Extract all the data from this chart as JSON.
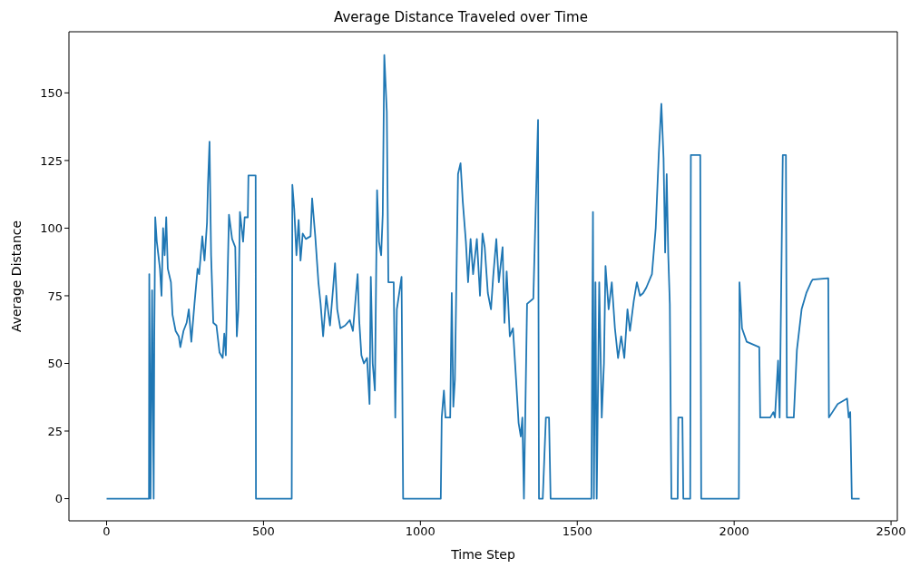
{
  "chart_data": {
    "type": "line",
    "title": "Average Distance Traveled over Time",
    "xlabel": "Time Step",
    "ylabel": "Average Distance",
    "xlim": [
      -120,
      2520
    ],
    "ylim": [
      -8.2,
      172.6
    ],
    "xticks": [
      0,
      500,
      1000,
      1500,
      2000,
      2500
    ],
    "yticks": [
      0,
      25,
      50,
      75,
      100,
      125,
      150
    ],
    "series": [
      {
        "color": "#1f77b4",
        "x": [
          0,
          135,
          136,
          140,
          145,
          150,
          152,
          155,
          160,
          170,
          175,
          180,
          185,
          190,
          195,
          205,
          210,
          220,
          230,
          235,
          245,
          255,
          262,
          270,
          280,
          290,
          295,
          300,
          305,
          312,
          320,
          323,
          328,
          333,
          340,
          350,
          360,
          370,
          375,
          380,
          390,
          400,
          410,
          415,
          420,
          425,
          435,
          440,
          450,
          452,
          475,
          476,
          590,
          592,
          598,
          605,
          612,
          618,
          625,
          635,
          650,
          655,
          665,
          675,
          682,
          690,
          700,
          712,
          722,
          728,
          735,
          745,
          760,
          775,
          785,
          795,
          800,
          805,
          812,
          820,
          830,
          838,
          842,
          848,
          855,
          862,
          868,
          875,
          880,
          885,
          893,
          898,
          915,
          920,
          925,
          940,
          945,
          1065,
          1068,
          1075,
          1080,
          1095,
          1100,
          1105,
          1110,
          1120,
          1128,
          1135,
          1145,
          1152,
          1160,
          1168,
          1180,
          1190,
          1198,
          1205,
          1215,
          1225,
          1232,
          1242,
          1250,
          1262,
          1268,
          1275,
          1285,
          1295,
          1305,
          1313,
          1320,
          1325,
          1330,
          1340,
          1360,
          1375,
          1378,
          1390,
          1400,
          1410,
          1415,
          1545,
          1550,
          1553,
          1558,
          1562,
          1570,
          1578,
          1585,
          1590,
          1600,
          1610,
          1620,
          1630,
          1640,
          1650,
          1660,
          1668,
          1680,
          1690,
          1700,
          1710,
          1720,
          1738,
          1750,
          1760,
          1768,
          1775,
          1780,
          1785,
          1790,
          1795,
          1800,
          1820,
          1822,
          1835,
          1838,
          1860,
          1862,
          1892,
          1895,
          2015,
          2017,
          2025,
          2040,
          2080,
          2083,
          2115,
          2125,
          2130,
          2140,
          2145,
          2155,
          2165,
          2168,
          2190,
          2200,
          2215,
          2230,
          2245,
          2250,
          2300,
          2302,
          2330,
          2360,
          2365,
          2370,
          2375,
          2400
        ],
        "values": [
          0,
          0,
          83,
          0,
          77,
          0,
          60,
          104,
          95,
          85,
          75,
          100,
          90,
          104,
          85,
          80,
          68,
          62,
          60,
          56,
          62,
          65,
          70,
          58,
          72,
          85,
          83,
          90,
          97,
          88,
          102,
          116,
          132,
          90,
          65,
          64,
          54,
          52,
          61,
          53,
          105,
          96,
          93,
          60,
          70,
          106,
          95,
          104,
          104,
          119.5,
          119.5,
          0,
          0,
          116,
          107,
          90,
          103,
          88,
          98,
          96,
          97,
          111,
          97,
          80,
          72,
          60,
          75,
          64,
          78,
          87,
          70,
          63,
          64,
          66,
          62,
          76,
          83,
          66,
          53,
          50,
          52,
          35,
          82,
          50,
          40,
          114,
          95,
          90,
          105,
          164,
          143,
          80,
          80,
          30,
          70,
          82,
          0,
          0,
          30,
          40,
          30,
          30,
          76,
          34,
          44,
          120,
          124,
          110,
          95,
          80,
          96,
          83,
          96,
          75,
          98,
          93,
          76,
          70,
          82,
          96,
          80,
          93,
          65,
          84,
          60,
          63,
          44,
          28,
          23,
          30,
          0,
          72,
          74,
          140,
          0,
          0,
          30,
          30,
          0,
          0,
          106,
          0,
          80,
          0,
          80,
          30,
          50,
          86,
          70,
          80,
          63,
          52,
          60,
          52,
          70,
          62,
          73,
          80,
          75,
          76,
          78,
          83,
          100,
          128,
          146,
          126,
          91,
          120,
          90,
          72,
          0,
          0,
          30,
          30,
          0,
          0,
          127,
          127,
          0,
          0,
          80,
          63,
          58,
          56,
          30,
          30,
          32,
          30,
          51,
          30,
          127,
          127,
          30,
          30,
          55,
          70,
          76,
          80,
          81,
          81.5,
          30,
          35,
          37,
          30,
          32,
          0,
          0
        ]
      }
    ]
  }
}
